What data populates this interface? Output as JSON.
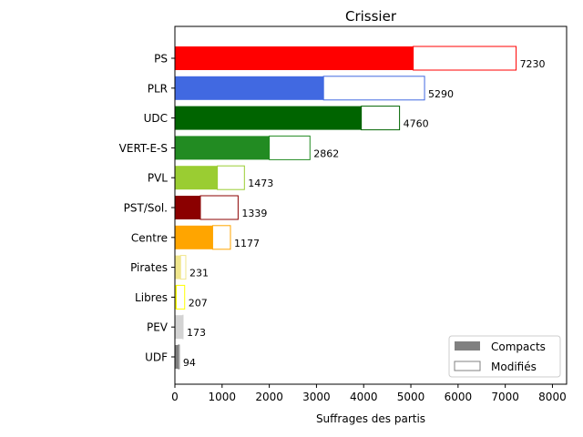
{
  "chart_data": {
    "type": "bar",
    "orientation": "horizontal",
    "stacked": true,
    "title": "Crissier",
    "xlabel": "Suffrages des partis",
    "ylabel": "",
    "xlim": [
      0,
      8300
    ],
    "xticks": [
      "0",
      "1000",
      "2000",
      "3000",
      "4000",
      "5000",
      "6000",
      "7000",
      "8000"
    ],
    "xtick_values": [
      0,
      1000,
      2000,
      3000,
      4000,
      5000,
      6000,
      7000,
      8000
    ],
    "grid": false,
    "legend_position": "lower-right",
    "categories": [
      "PS",
      "PLR",
      "UDC",
      "VERT-E-S",
      "PVL",
      "PST/Sol.",
      "Centre",
      "Pirates",
      "Libres",
      "PEV",
      "UDF"
    ],
    "totals": [
      7230,
      5290,
      4760,
      2862,
      1473,
      1339,
      1177,
      231,
      207,
      173,
      94
    ],
    "totals_labels": [
      "7230",
      "5290",
      "4760",
      "2862",
      "1473",
      "1339",
      "1177",
      "231",
      "207",
      "173",
      "94"
    ],
    "series": [
      {
        "name": "Compacts",
        "values": [
          5050,
          3150,
          3950,
          2000,
          900,
          540,
          800,
          120,
          30,
          170,
          70
        ]
      },
      {
        "name": "Modifiés",
        "values": [
          2180,
          2140,
          810,
          862,
          573,
          799,
          377,
          111,
          177,
          3,
          24
        ]
      }
    ],
    "colors": [
      "#ff0000",
      "#4169e1",
      "#006400",
      "#228b22",
      "#9acd32",
      "#8b0000",
      "#ffa500",
      "#f0e68c",
      "#ffff00",
      "#d3d3d3",
      "#808080"
    ],
    "legend": {
      "compacts_label": "Compacts",
      "modifies_label": "Modifiés",
      "compacts_color": "#808080",
      "modifies_color": "#ffffff"
    }
  }
}
